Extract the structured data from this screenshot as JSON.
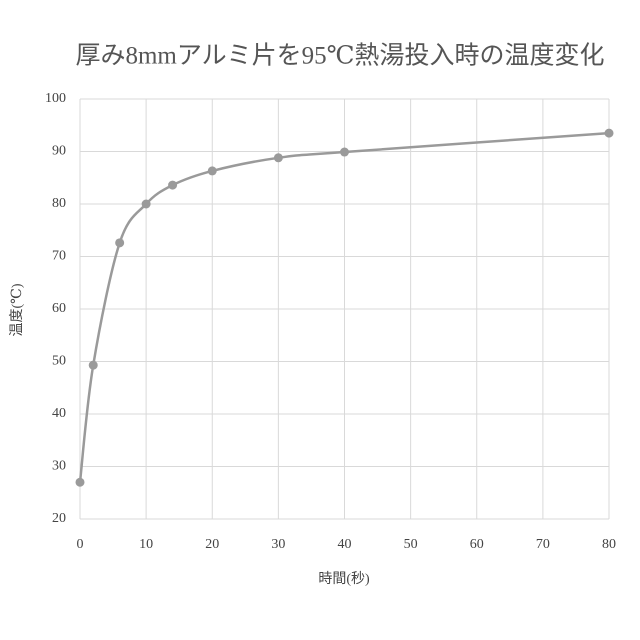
{
  "chart_data": {
    "type": "line",
    "smooth": true,
    "markers": true,
    "title": "厚み8mmアルミ片を95℃熱湯投入時の温度変化",
    "x_label": "時間(秒)",
    "y_label": "温度(℃)",
    "x": [
      0,
      2,
      6,
      10,
      14,
      20,
      30,
      40,
      80
    ],
    "series": [
      {
        "color": "#9a9a9a",
        "values": [
          27,
          49.3,
          72.6,
          80,
          83.6,
          86.3,
          88.8,
          89.9,
          93.5
        ]
      }
    ],
    "xlim": [
      0,
      80
    ],
    "xticks": [
      0,
      10,
      20,
      30,
      40,
      50,
      60,
      70,
      80
    ],
    "ylim": [
      20,
      100
    ],
    "yticks": [
      20,
      30,
      40,
      50,
      60,
      70,
      80,
      90,
      100
    ],
    "grid": true
  }
}
